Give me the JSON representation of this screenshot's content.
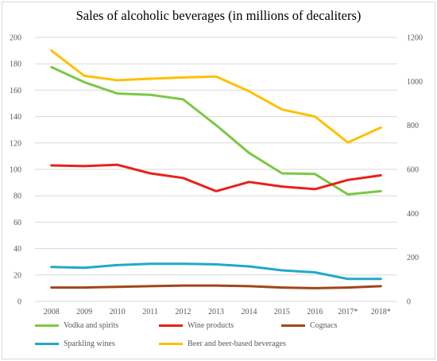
{
  "chart_data": {
    "type": "line",
    "title": "Sales of alcoholic beverages (in millions of decaliters)",
    "categories": [
      "2008",
      "2009",
      "2010",
      "2011",
      "2012",
      "2013",
      "2014",
      "2015",
      "2016",
      "2017*",
      "2018*"
    ],
    "y_left": {
      "ticks": [
        "0",
        "20",
        "40",
        "60",
        "80",
        "100",
        "120",
        "140",
        "160",
        "180",
        "200"
      ],
      "ylim": [
        0,
        200
      ]
    },
    "y_right": {
      "ticks": [
        "0",
        "200",
        "400",
        "600",
        "800",
        "1000",
        "1200"
      ],
      "ylim": [
        0,
        1200
      ]
    },
    "grid": true,
    "legend_position": "bottom",
    "series": [
      {
        "name": "Vodka and spirits",
        "axis": "left",
        "color": "#7ac943",
        "values": [
          177.5,
          166,
          157.5,
          156.5,
          153,
          133.5,
          112.5,
          97,
          96.5,
          81,
          83.5
        ]
      },
      {
        "name": "Wine products",
        "axis": "left",
        "color": "#e8211b",
        "values": [
          103,
          102.5,
          103.5,
          97,
          93.5,
          83.5,
          90.5,
          87,
          85,
          92,
          95.5
        ]
      },
      {
        "name": "Cognacs",
        "axis": "left",
        "color": "#a0461a",
        "values": [
          10.5,
          10.5,
          11,
          11.5,
          12,
          12,
          11.5,
          10.5,
          10,
          10.5,
          11.5
        ]
      },
      {
        "name": "Sparkling wines",
        "axis": "left",
        "color": "#21a9c7",
        "values": [
          26,
          25.5,
          27.5,
          28.5,
          28.5,
          28,
          26.5,
          23.5,
          22,
          17,
          17
        ]
      },
      {
        "name": "Beer and beer-based beverages",
        "axis": "right",
        "color": "#ffc000",
        "values": [
          1140,
          1025,
          1005,
          1012,
          1018,
          1022,
          955,
          872,
          840,
          722,
          790
        ]
      }
    ]
  }
}
